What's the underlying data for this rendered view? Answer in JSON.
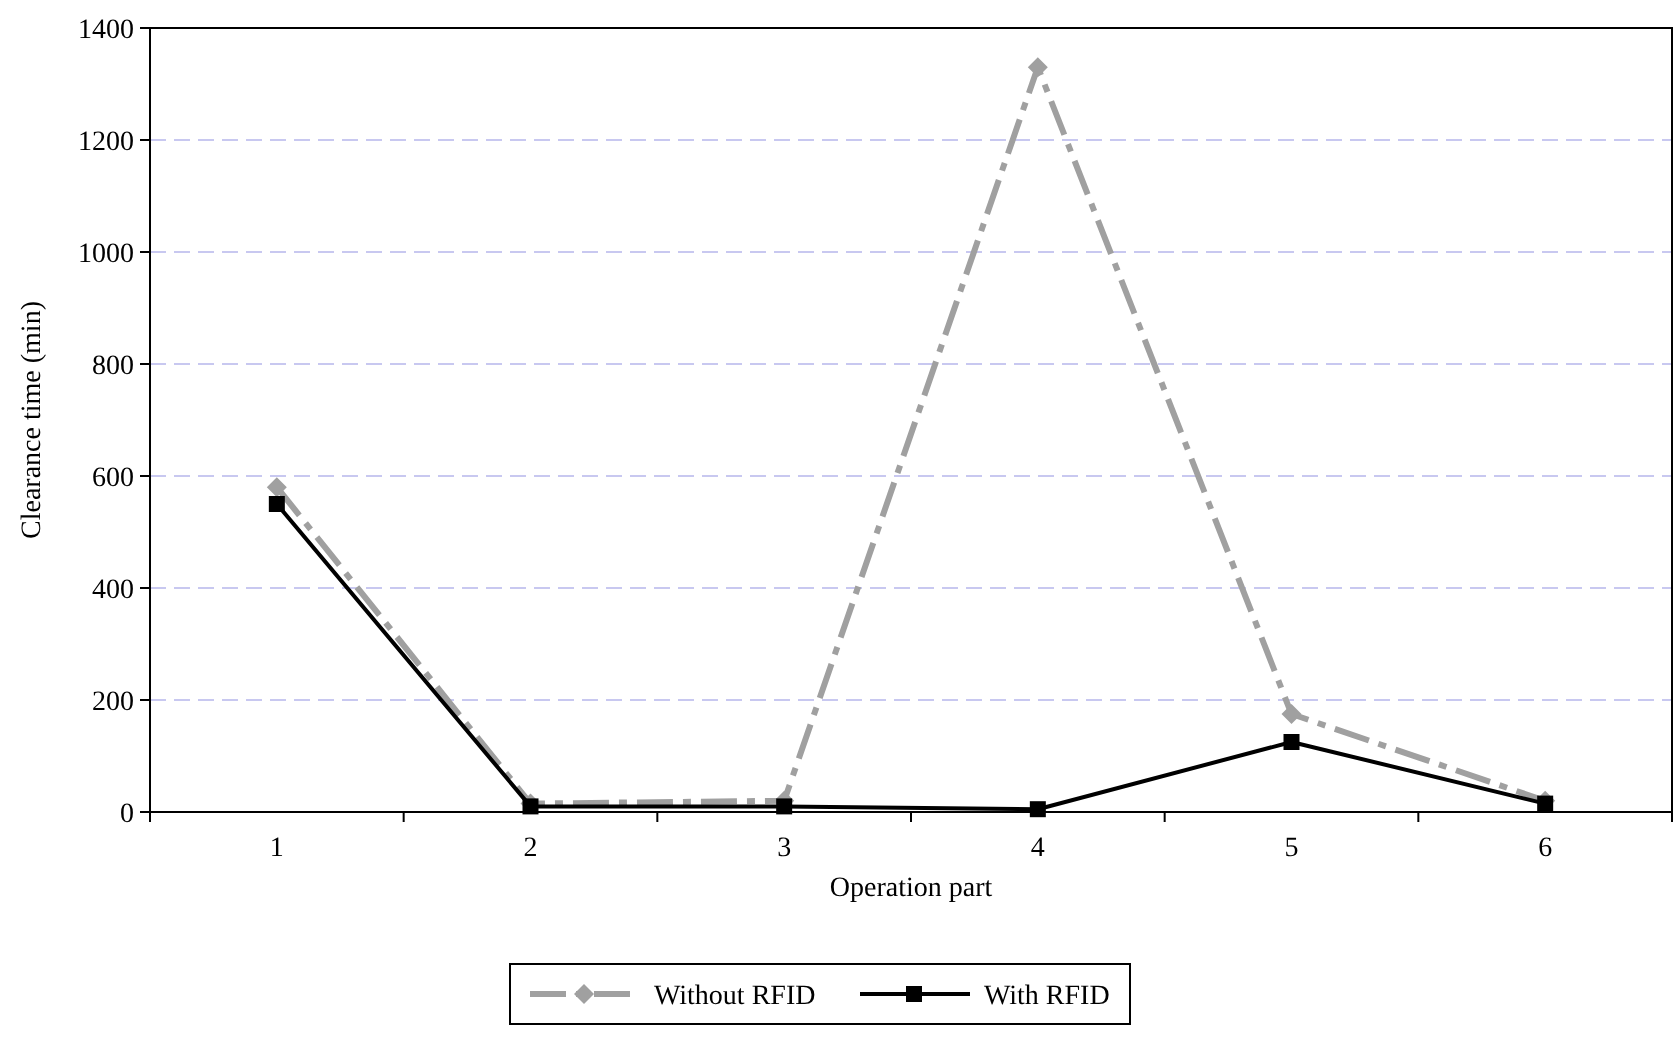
{
  "chart_data": {
    "type": "line",
    "xlabel": "Operation part",
    "ylabel": "Clearance time (min)",
    "categories": [
      "1",
      "2",
      "3",
      "4",
      "5",
      "6"
    ],
    "series": [
      {
        "name": "Without RFID",
        "color": "#a0a0a0",
        "values": [
          580,
          15,
          20,
          1330,
          175,
          20
        ],
        "marker": "diamond",
        "line_style": "dashed"
      },
      {
        "name": "With RFID",
        "color": "#000000",
        "values": [
          550,
          10,
          10,
          5,
          125,
          15
        ],
        "marker": "square",
        "line_style": "solid"
      }
    ],
    "ylim": [
      0,
      1400
    ],
    "yticks": [
      0,
      200,
      400,
      600,
      800,
      1000,
      1200,
      1400
    ],
    "grid": "y",
    "legend": "bottom"
  }
}
